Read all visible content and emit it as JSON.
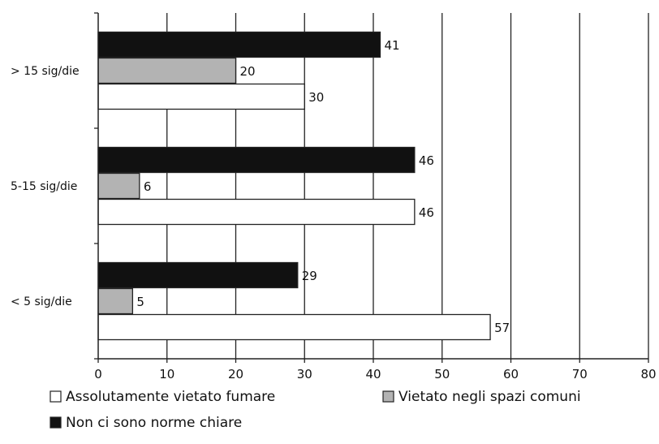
{
  "chart_data": {
    "type": "bar",
    "orientation": "horizontal",
    "title": "",
    "xlabel": "",
    "ylabel": "",
    "categories": [
      "> 15 sig/die",
      "5-15 sig/die",
      "<  5 sig/die"
    ],
    "series": [
      {
        "name": "Non ci sono norme chiare",
        "values": [
          41,
          46,
          29
        ],
        "color": "#111111"
      },
      {
        "name": "Vietato negli spazi comuni",
        "values": [
          20,
          6,
          5
        ],
        "color": "#b3b3b3"
      },
      {
        "name": "Assolutamente vietato fumare",
        "values": [
          30,
          46,
          57
        ],
        "color": "#ffffff"
      }
    ],
    "xlim": [
      0,
      80
    ],
    "xticks": [
      0,
      10,
      20,
      30,
      40,
      50,
      60,
      70,
      80
    ],
    "grid": "vertical",
    "legend": {
      "placement": "bottom",
      "order": [
        "Assolutamente vietato fumare",
        "Vietato negli spazi comuni",
        "Non ci sono norme chiare"
      ]
    }
  }
}
